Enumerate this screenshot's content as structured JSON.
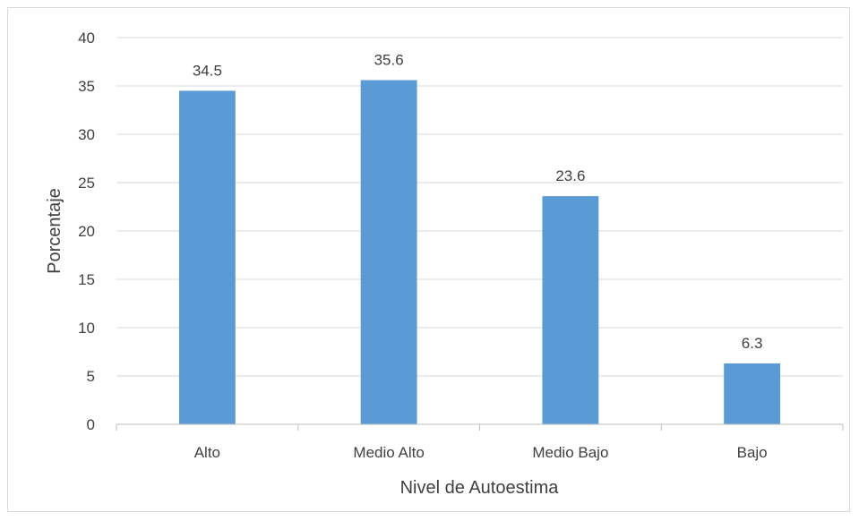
{
  "chart_data": {
    "type": "bar",
    "title": "",
    "xlabel": "Nivel de Autoestima",
    "ylabel": "Porcentaje",
    "categories": [
      "Alto",
      "Medio Alto",
      "Medio Bajo",
      "Bajo"
    ],
    "values": [
      34.5,
      35.6,
      23.6,
      6.3
    ],
    "value_labels": [
      "34.5",
      "35.6",
      "23.6",
      "6.3"
    ],
    "ylim": [
      0,
      40
    ],
    "yticks": [
      0,
      5,
      10,
      15,
      20,
      25,
      30,
      35,
      40
    ],
    "ytick_labels": [
      "0",
      "5",
      "10",
      "15",
      "20",
      "25",
      "30",
      "35",
      "40"
    ],
    "grid": true,
    "legend": false,
    "colors": {
      "bar": "#5b9bd5",
      "grid": "#d9d9d9",
      "text": "#404040",
      "axis": "#bfbfbf"
    }
  }
}
